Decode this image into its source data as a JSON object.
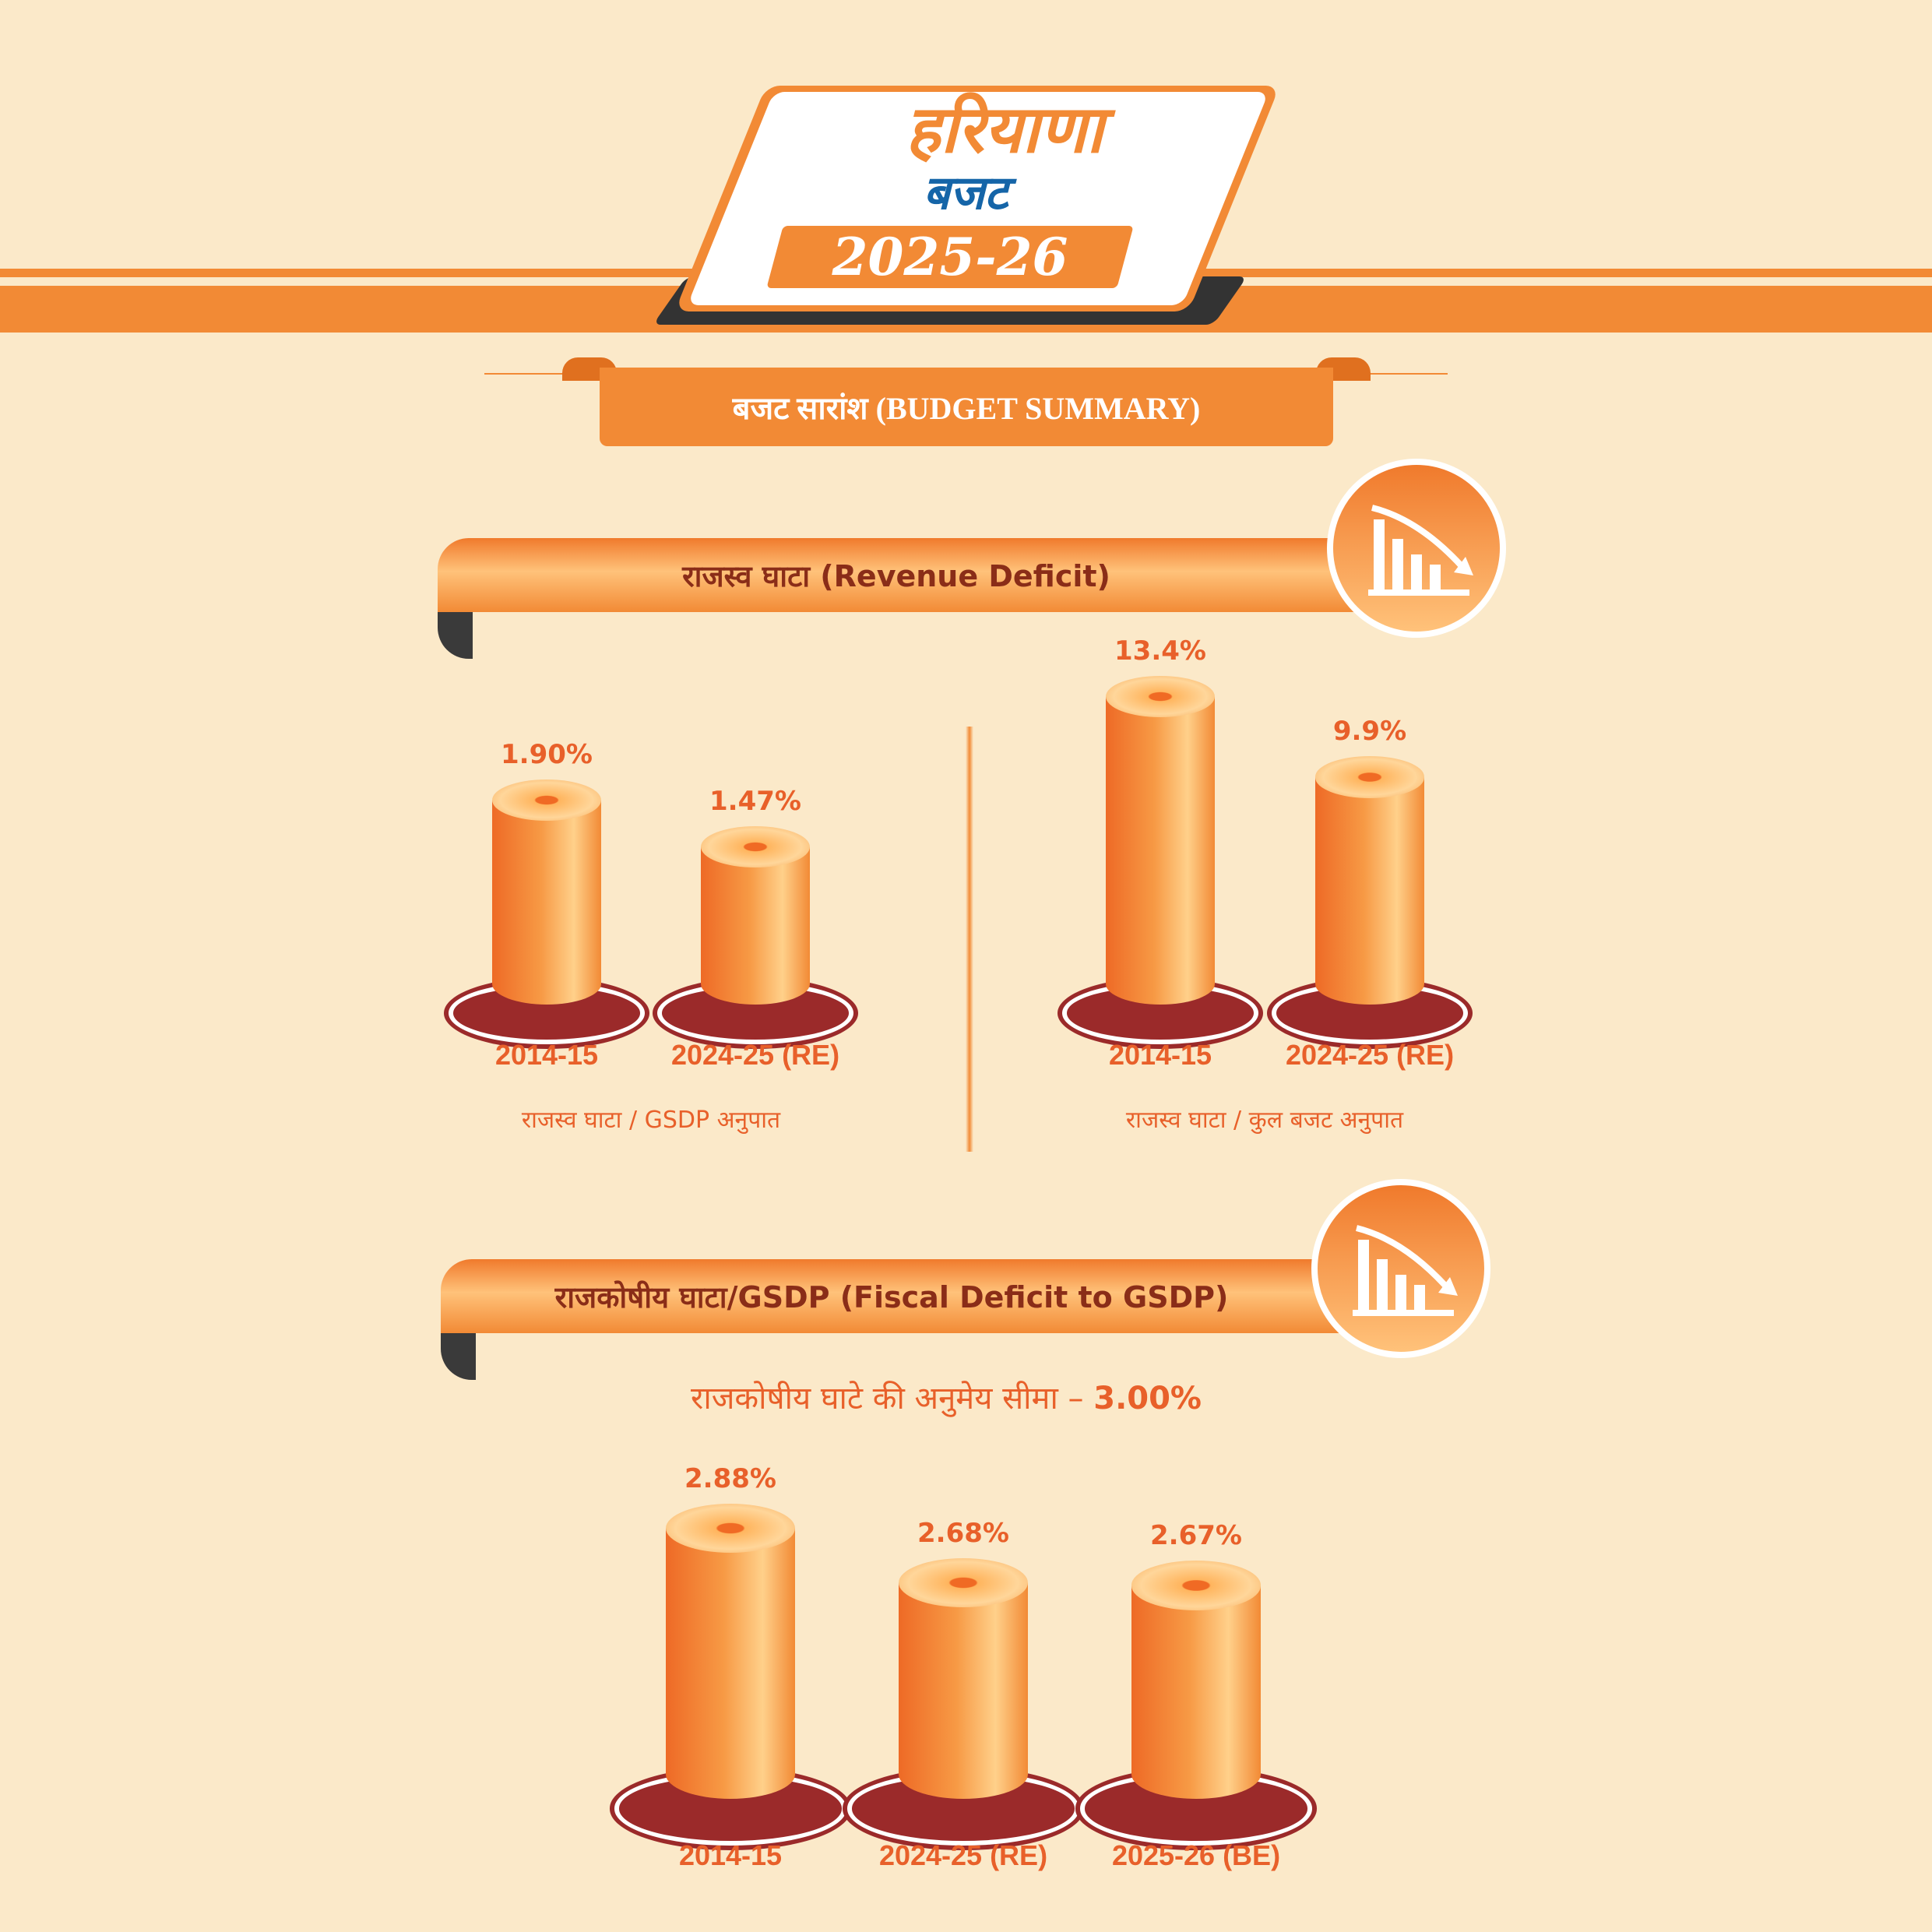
{
  "header": {
    "logo_line1": "हरियाणा",
    "logo_line2": "बजट",
    "logo_year": "2025-26",
    "summary_title": "बजट सारांश  (BUDGET SUMMARY)"
  },
  "colors": {
    "accent": "#f28a35",
    "text_orange": "#e8602a",
    "blue": "#1565a8",
    "base_red": "#9b2a2a",
    "background": "#fbe9c9"
  },
  "icons": [
    "declining-bar-chart-icon"
  ],
  "sections": {
    "revenue": {
      "title": "राजस्व घाटा (Revenue Deficit)"
    },
    "fiscal": {
      "title": "राजकोषीय घाटा/GSDP  (Fiscal Deficit to GSDP)",
      "limit_label": "राजकोषीय घाटे की अनुमेय सीमा – ",
      "limit_value": "3.00%"
    }
  },
  "chart_data": [
    {
      "type": "bar",
      "title": "राजस्व घाटा / GSDP अनुपात",
      "categories": [
        "2014-15",
        "2024-25 (RE)"
      ],
      "values": [
        1.9,
        1.47
      ],
      "labels": [
        "1.90%",
        "1.47%"
      ],
      "unit": "%"
    },
    {
      "type": "bar",
      "title": "राजस्व घाटा / कुल बजट अनुपात",
      "categories": [
        "2014-15",
        "2024-25 (RE)"
      ],
      "values": [
        13.4,
        9.9
      ],
      "labels": [
        "13.4%",
        "9.9%"
      ],
      "unit": "%"
    },
    {
      "type": "bar",
      "title": "",
      "categories": [
        "2014-15",
        "2024-25 (RE)",
        "2025-26 (BE)"
      ],
      "values": [
        2.88,
        2.68,
        2.67
      ],
      "labels": [
        "2.88%",
        "2.68%",
        "2.67%"
      ],
      "unit": "%"
    }
  ]
}
